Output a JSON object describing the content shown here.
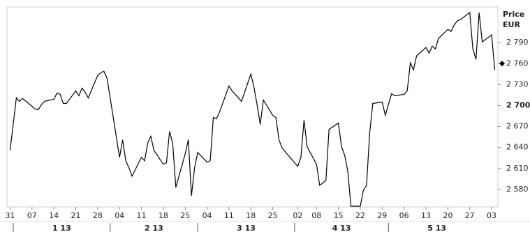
{
  "chart_data": {
    "type": "line",
    "y_axis_title": [
      "Price",
      "EUR"
    ],
    "x": [
      "2012-12-31",
      "2013-01-02",
      "2013-01-03",
      "2013-01-04",
      "2013-01-07",
      "2013-01-08",
      "2013-01-09",
      "2013-01-10",
      "2013-01-11",
      "2013-01-14",
      "2013-01-15",
      "2013-01-16",
      "2013-01-17",
      "2013-01-18",
      "2013-01-21",
      "2013-01-22",
      "2013-01-23",
      "2013-01-24",
      "2013-01-25",
      "2013-01-28",
      "2013-01-29",
      "2013-01-30",
      "2013-01-31",
      "2013-02-01",
      "2013-02-04",
      "2013-02-05",
      "2013-02-06",
      "2013-02-07",
      "2013-02-08",
      "2013-02-11",
      "2013-02-12",
      "2013-02-13",
      "2013-02-14",
      "2013-02-15",
      "2013-02-18",
      "2013-02-19",
      "2013-02-20",
      "2013-02-21",
      "2013-02-22",
      "2013-02-25",
      "2013-02-26",
      "2013-02-27",
      "2013-02-28",
      "2013-03-01",
      "2013-03-04",
      "2013-03-05",
      "2013-03-06",
      "2013-03-07",
      "2013-03-08",
      "2013-03-11",
      "2013-03-12",
      "2013-03-13",
      "2013-03-14",
      "2013-03-15",
      "2013-03-18",
      "2013-03-19",
      "2013-03-20",
      "2013-03-21",
      "2013-03-22",
      "2013-03-25",
      "2013-03-26",
      "2013-03-27",
      "2013-03-28",
      "2013-04-02",
      "2013-04-03",
      "2013-04-04",
      "2013-04-05",
      "2013-04-08",
      "2013-04-09",
      "2013-04-10",
      "2013-04-11",
      "2013-04-12",
      "2013-04-15",
      "2013-04-16",
      "2013-04-17",
      "2013-04-18",
      "2013-04-19",
      "2013-04-22",
      "2013-04-23",
      "2013-04-24",
      "2013-04-25",
      "2013-04-26",
      "2013-04-29",
      "2013-04-30",
      "2013-05-02",
      "2013-05-03",
      "2013-05-06",
      "2013-05-07",
      "2013-05-08",
      "2013-05-09",
      "2013-05-10",
      "2013-05-13",
      "2013-05-14",
      "2013-05-15",
      "2013-05-16",
      "2013-05-17",
      "2013-05-20",
      "2013-05-21",
      "2013-05-22",
      "2013-05-23",
      "2013-05-24",
      "2013-05-27",
      "2013-05-28",
      "2013-05-29",
      "2013-05-30",
      "2013-05-31",
      "2013-06-03",
      "2013-06-04"
    ],
    "series": [
      {
        "color": "#000000",
        "values": [
          2636,
          2711,
          2706,
          2710,
          2699,
          2695,
          2694,
          2701,
          2706,
          2709,
          2718,
          2716,
          2703,
          2703,
          2721,
          2714,
          2725,
          2719,
          2711,
          2743,
          2747,
          2749,
          2739,
          2711,
          2626,
          2651,
          2621,
          2611,
          2599,
          2626,
          2621,
          2646,
          2656,
          2636,
          2616,
          2618,
          2663,
          2646,
          2583,
          2631,
          2651,
          2571,
          2611,
          2633,
          2619,
          2621,
          2683,
          2681,
          2691,
          2728,
          2721,
          2716,
          2711,
          2706,
          2745,
          2726,
          2701,
          2673,
          2708,
          2686,
          2683,
          2651,
          2639,
          2613,
          2626,
          2679,
          2641,
          2616,
          2586,
          2589,
          2593,
          2666,
          2675,
          2641,
          2629,
          2606,
          2556,
          2556,
          2579,
          2586,
          2661,
          2703,
          2705,
          2686,
          2717,
          2714,
          2716,
          2721,
          2761,
          2751,
          2771,
          2783,
          2775,
          2785,
          2781,
          2796,
          2809,
          2806,
          2815,
          2821,
          2823,
          2833,
          2781,
          2766,
          2833,
          2791,
          2801,
          2751
        ]
      }
    ],
    "xlim": [
      "2012-12-30",
      "2013-06-05"
    ],
    "xticks": [
      {
        "value": "2012-12-31",
        "label": "31"
      },
      {
        "value": "2013-01-07",
        "label": "07"
      },
      {
        "value": "2013-01-14",
        "label": "14"
      },
      {
        "value": "2013-01-21",
        "label": "21"
      },
      {
        "value": "2013-01-28",
        "label": "28"
      },
      {
        "value": "2013-02-04",
        "label": "04"
      },
      {
        "value": "2013-02-11",
        "label": "11"
      },
      {
        "value": "2013-02-18",
        "label": "18"
      },
      {
        "value": "2013-02-25",
        "label": "25"
      },
      {
        "value": "2013-03-04",
        "label": "04"
      },
      {
        "value": "2013-03-11",
        "label": "11"
      },
      {
        "value": "2013-03-18",
        "label": "18"
      },
      {
        "value": "2013-03-25",
        "label": "25"
      },
      {
        "value": "2013-04-02",
        "label": "02"
      },
      {
        "value": "2013-04-08",
        "label": "08"
      },
      {
        "value": "2013-04-15",
        "label": "15"
      },
      {
        "value": "2013-04-22",
        "label": "22"
      },
      {
        "value": "2013-04-29",
        "label": "29"
      },
      {
        "value": "2013-05-06",
        "label": "06"
      },
      {
        "value": "2013-05-13",
        "label": "13"
      },
      {
        "value": "2013-05-20",
        "label": "20"
      },
      {
        "value": "2013-05-27",
        "label": "27"
      },
      {
        "value": "2013-06-03",
        "label": "03"
      }
    ],
    "month_ticks": [
      {
        "value": "2013-01",
        "label": "1 13"
      },
      {
        "value": "2013-02",
        "label": "2 13"
      },
      {
        "value": "2013-03",
        "label": "3 13"
      },
      {
        "value": "2013-04",
        "label": "4 13"
      },
      {
        "value": "2013-05",
        "label": "5 13"
      }
    ],
    "ylim": [
      2555,
      2841
    ],
    "yticks": [
      {
        "value": 2580,
        "label": "2 580"
      },
      {
        "value": 2610,
        "label": "2 610"
      },
      {
        "value": 2640,
        "label": "2 640"
      },
      {
        "value": 2670,
        "label": "2 670"
      },
      {
        "value": 2700,
        "label": "2 700",
        "bold": true
      },
      {
        "value": 2730,
        "label": "2 730"
      },
      {
        "value": 2760,
        "label": "2 760"
      },
      {
        "value": 2790,
        "label": "2 790"
      }
    ],
    "marker_value": 2760,
    "grid": false
  }
}
